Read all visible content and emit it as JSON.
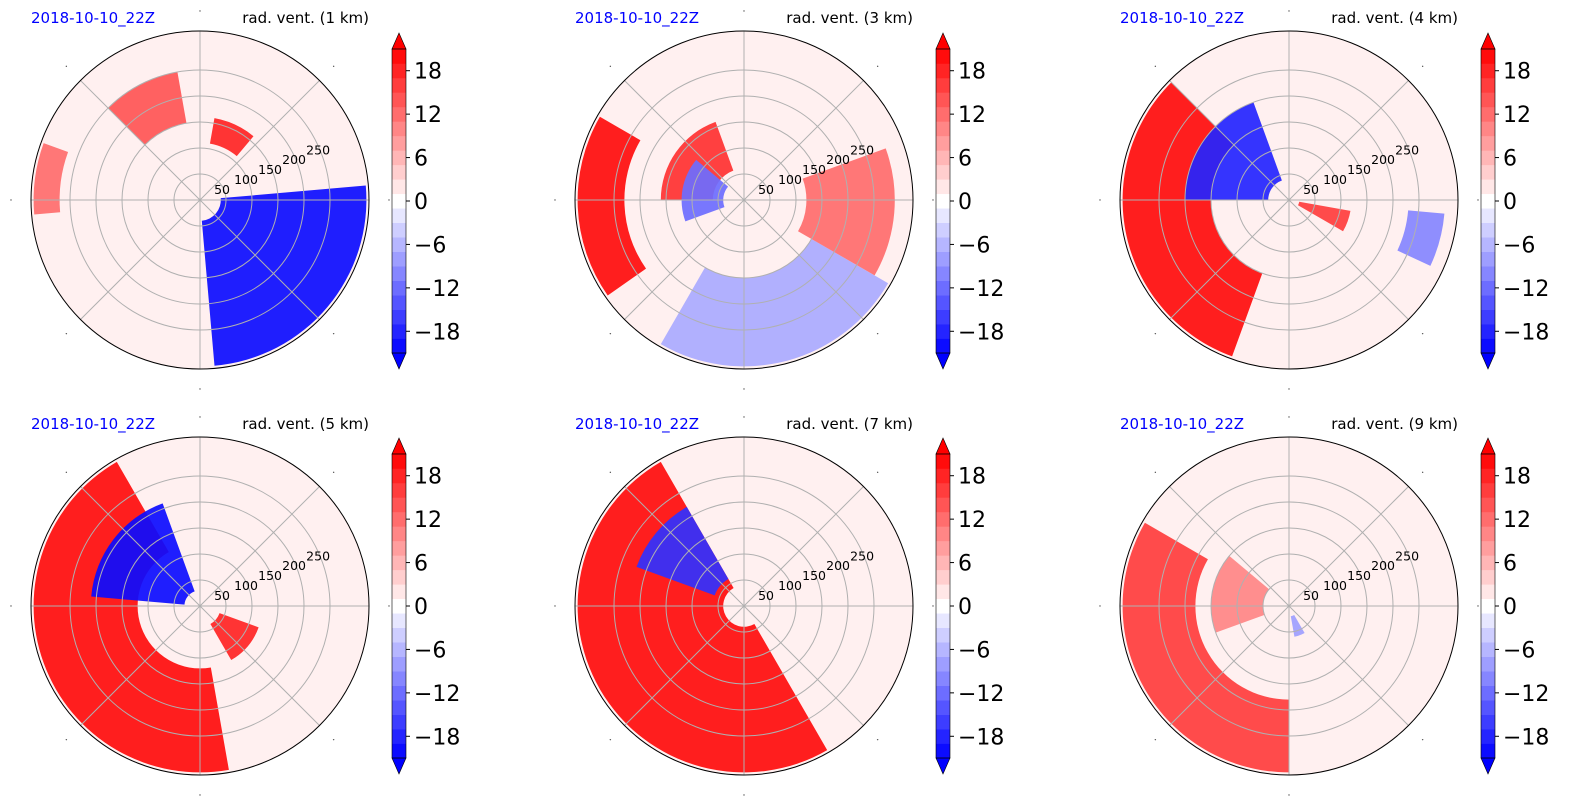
{
  "colors": {
    "date_text": "#0000ff",
    "positive": "#ff0000",
    "negative": "#0000ff",
    "grid": "#b0b0b0"
  },
  "chart_data": [
    {
      "type": "heatmap",
      "projection": "polar",
      "date_label": "2018-10-10_22Z",
      "title": "rad. vent. (1 km)",
      "range_rings": [
        50,
        100,
        150,
        200,
        250
      ],
      "range_labels": [
        "50",
        "100",
        "150",
        "200",
        "250"
      ],
      "colorbar": {
        "ticks": [
          -18,
          -12,
          -6,
          0,
          6,
          12,
          18
        ],
        "tick_labels": [
          "−18",
          "−12",
          "−6",
          "0",
          "6",
          "12",
          "18"
        ],
        "range": [
          -21,
          21
        ],
        "extend": "both",
        "cmap": "bwr"
      },
      "regions": [
        {
          "sign": "negative",
          "from_deg": -85,
          "to_deg": 5,
          "r_from_km": 40,
          "r_to_km": 320,
          "strength": 1.0
        },
        {
          "sign": "positive",
          "from_deg": 100,
          "to_deg": 135,
          "r_from_km": 150,
          "r_to_km": 250,
          "strength": 0.7
        },
        {
          "sign": "positive",
          "from_deg": 50,
          "to_deg": 80,
          "r_from_km": 110,
          "r_to_km": 160,
          "strength": 0.9
        },
        {
          "sign": "positive",
          "from_deg": 160,
          "to_deg": 185,
          "r_from_km": 270,
          "r_to_km": 320,
          "strength": 0.6
        }
      ]
    },
    {
      "type": "heatmap",
      "projection": "polar",
      "date_label": "2018-10-10_22Z",
      "title": "rad. vent. (3 km)",
      "range_rings": [
        50,
        100,
        150,
        200,
        250
      ],
      "range_labels": [
        "50",
        "100",
        "150",
        "200",
        "250"
      ],
      "colorbar": {
        "ticks": [
          -18,
          -12,
          -6,
          0,
          6,
          12,
          18
        ],
        "tick_labels": [
          "−18",
          "−12",
          "−6",
          "0",
          "6",
          "12",
          "18"
        ],
        "range": [
          -21,
          21
        ],
        "extend": "both",
        "cmap": "bwr"
      },
      "regions": [
        {
          "sign": "positive",
          "from_deg": 150,
          "to_deg": 215,
          "r_from_km": 230,
          "r_to_km": 320,
          "strength": 1.0
        },
        {
          "sign": "positive",
          "from_deg": 110,
          "to_deg": 180,
          "r_from_km": 60,
          "r_to_km": 160,
          "strength": 0.85
        },
        {
          "sign": "negative",
          "from_deg": 140,
          "to_deg": 200,
          "r_from_km": 40,
          "r_to_km": 120,
          "strength": 0.6
        },
        {
          "sign": "negative",
          "from_deg": 240,
          "to_deg": 330,
          "r_from_km": 150,
          "r_to_km": 320,
          "strength": 0.35
        },
        {
          "sign": "positive",
          "from_deg": -30,
          "to_deg": 20,
          "r_from_km": 120,
          "r_to_km": 290,
          "strength": 0.6
        }
      ]
    },
    {
      "type": "heatmap",
      "projection": "polar",
      "date_label": "2018-10-10_22Z",
      "title": "rad. vent. (4 km)",
      "range_rings": [
        50,
        100,
        150,
        200,
        250
      ],
      "range_labels": [
        "50",
        "100",
        "150",
        "200",
        "250"
      ],
      "colorbar": {
        "ticks": [
          -18,
          -12,
          -6,
          0,
          6,
          12,
          18
        ],
        "tick_labels": [
          "−18",
          "−12",
          "−6",
          "0",
          "6",
          "12",
          "18"
        ],
        "range": [
          -21,
          21
        ],
        "extend": "both",
        "cmap": "bwr"
      },
      "regions": [
        {
          "sign": "positive",
          "from_deg": 135,
          "to_deg": 250,
          "r_from_km": 150,
          "r_to_km": 320,
          "strength": 1.0
        },
        {
          "sign": "negative",
          "from_deg": 110,
          "to_deg": 180,
          "r_from_km": 40,
          "r_to_km": 200,
          "strength": 0.9
        },
        {
          "sign": "positive",
          "from_deg": -30,
          "to_deg": -10,
          "r_from_km": 20,
          "r_to_km": 120,
          "strength": 0.8
        },
        {
          "sign": "negative",
          "from_deg": -25,
          "to_deg": -5,
          "r_from_km": 230,
          "r_to_km": 300,
          "strength": 0.5
        }
      ]
    },
    {
      "type": "heatmap",
      "projection": "polar",
      "date_label": "2018-10-10_22Z",
      "title": "rad. vent. (5 km)",
      "range_rings": [
        50,
        100,
        150,
        200,
        250
      ],
      "range_labels": [
        "50",
        "100",
        "150",
        "200",
        "250"
      ],
      "colorbar": {
        "ticks": [
          -18,
          -12,
          -6,
          0,
          6,
          12,
          18
        ],
        "tick_labels": [
          "−18",
          "−12",
          "−6",
          "0",
          "6",
          "12",
          "18"
        ],
        "range": [
          -21,
          21
        ],
        "extend": "both",
        "cmap": "bwr"
      },
      "regions": [
        {
          "sign": "positive",
          "from_deg": 120,
          "to_deg": 280,
          "r_from_km": 120,
          "r_to_km": 320,
          "strength": 1.0
        },
        {
          "sign": "negative",
          "from_deg": 110,
          "to_deg": 175,
          "r_from_km": 30,
          "r_to_km": 210,
          "strength": 1.0
        },
        {
          "sign": "positive",
          "from_deg": -60,
          "to_deg": -20,
          "r_from_km": 40,
          "r_to_km": 120,
          "strength": 0.9
        }
      ]
    },
    {
      "type": "heatmap",
      "projection": "polar",
      "date_label": "2018-10-10_22Z",
      "title": "rad. vent. (7 km)",
      "range_rings": [
        50,
        100,
        150,
        200,
        250
      ],
      "range_labels": [
        "50",
        "100",
        "150",
        "200",
        "250"
      ],
      "colorbar": {
        "ticks": [
          -18,
          -12,
          -6,
          0,
          6,
          12,
          18
        ],
        "tick_labels": [
          "−18",
          "−12",
          "−6",
          "0",
          "6",
          "12",
          "18"
        ],
        "range": [
          -21,
          21
        ],
        "extend": "both",
        "cmap": "bwr"
      },
      "regions": [
        {
          "sign": "positive",
          "from_deg": 120,
          "to_deg": 300,
          "r_from_km": 40,
          "r_to_km": 320,
          "strength": 1.0
        },
        {
          "sign": "negative",
          "from_deg": 120,
          "to_deg": 160,
          "r_from_km": 60,
          "r_to_km": 220,
          "strength": 0.85
        }
      ]
    },
    {
      "type": "heatmap",
      "projection": "polar",
      "date_label": "2018-10-10_22Z",
      "title": "rad. vent. (9 km)",
      "range_rings": [
        50,
        100,
        150,
        200,
        250
      ],
      "range_labels": [
        "50",
        "100",
        "150",
        "200",
        "250"
      ],
      "colorbar": {
        "ticks": [
          -18,
          -12,
          -6,
          0,
          6,
          12,
          18
        ],
        "tick_labels": [
          "−18",
          "−12",
          "−6",
          "0",
          "6",
          "12",
          "18"
        ],
        "range": [
          -21,
          21
        ],
        "extend": "both",
        "cmap": "bwr"
      },
      "regions": [
        {
          "sign": "positive",
          "from_deg": 150,
          "to_deg": 270,
          "r_from_km": 180,
          "r_to_km": 320,
          "strength": 0.8
        },
        {
          "sign": "positive",
          "from_deg": 140,
          "to_deg": 200,
          "r_from_km": 50,
          "r_to_km": 150,
          "strength": 0.5
        },
        {
          "sign": "negative",
          "from_deg": -80,
          "to_deg": -60,
          "r_from_km": 20,
          "r_to_km": 60,
          "strength": 0.4
        }
      ]
    }
  ]
}
